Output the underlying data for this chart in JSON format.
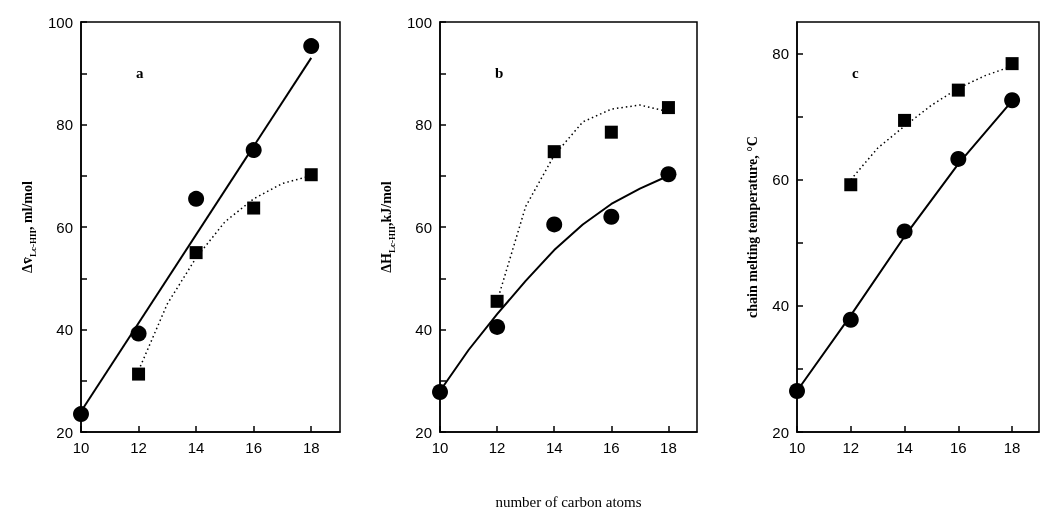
{
  "chart_data": [
    {
      "type": "scatter",
      "ylabel": "Δv̄$_{Lc-HII}$, ml/mol",
      "annotations": [
        "a"
      ],
      "xlim": [
        10,
        19
      ],
      "xticks": [
        10,
        12,
        14,
        16,
        18
      ],
      "ylim": [
        20,
        100
      ],
      "yticks": [
        20,
        {
          "value": 30,
          "label": null
        },
        40,
        {
          "value": 50,
          "label": null
        },
        60,
        {
          "value": 70,
          "label": null
        },
        80,
        {
          "value": 90,
          "label": null
        },
        100
      ],
      "grid": false,
      "series": [
        {
          "marker": "circle",
          "color": "#000000",
          "x": [
            10,
            12,
            14,
            16,
            18
          ],
          "values": [
            23.5,
            39.2,
            65.5,
            75,
            95.3
          ]
        },
        {
          "marker": "square",
          "color": "#000000",
          "x": [
            12,
            14,
            16,
            18
          ],
          "values": [
            31.3,
            55,
            63.7,
            70.2
          ]
        },
        {
          "type": "line",
          "marker": "none",
          "line_style": "solid",
          "color": "#000000",
          "x": [
            10,
            18
          ],
          "values": [
            24,
            93
          ]
        },
        {
          "type": "line",
          "marker": "none",
          "line_style": "dotted",
          "color": "#000000",
          "x": [
            12,
            13,
            14,
            15,
            16,
            17,
            18
          ],
          "values": [
            32,
            45,
            54,
            61,
            65.5,
            68.5,
            70
          ]
        }
      ]
    },
    {
      "type": "scatter",
      "ylabel": "ΔH$_{Lc-HII}$,kJ/mol",
      "xlabel": "number of carbon atoms",
      "annotations": [
        "b"
      ],
      "xlim": [
        10,
        19
      ],
      "xticks": [
        10,
        12,
        14,
        16,
        18
      ],
      "ylim": [
        20,
        100
      ],
      "yticks": [
        20,
        {
          "value": 30,
          "label": null
        },
        40,
        {
          "value": 50,
          "label": null
        },
        60,
        {
          "value": 70,
          "label": null
        },
        80,
        {
          "value": 90,
          "label": null
        },
        100
      ],
      "grid": false,
      "series": [
        {
          "marker": "circle",
          "color": "#000000",
          "x": [
            10,
            12,
            14,
            16,
            18
          ],
          "values": [
            27.8,
            40.5,
            60.5,
            62,
            70.3
          ]
        },
        {
          "marker": "square",
          "color": "#000000",
          "x": [
            12,
            14,
            16,
            18
          ],
          "values": [
            45.5,
            74.7,
            78.5,
            83.3
          ]
        },
        {
          "type": "line",
          "marker": "none",
          "line_style": "solid",
          "color": "#000000",
          "x": [
            10,
            11,
            12,
            13,
            14,
            15,
            16,
            17,
            18
          ],
          "values": [
            28,
            36,
            43,
            49.5,
            55.5,
            60.5,
            64.5,
            67.5,
            70
          ]
        },
        {
          "type": "line",
          "marker": "none",
          "line_style": "dotted",
          "color": "#000000",
          "x": [
            12,
            13,
            14,
            15,
            16,
            17,
            18
          ],
          "values": [
            45.5,
            64,
            74,
            80.5,
            83,
            83.8,
            82.5
          ]
        }
      ]
    },
    {
      "type": "scatter",
      "ylabel": "chain melting temperature, °C",
      "annotations": [
        "c"
      ],
      "xlim": [
        10,
        19
      ],
      "xticks": [
        10,
        12,
        14,
        16,
        18
      ],
      "ylim": [
        20,
        85
      ],
      "yticks": [
        20,
        {
          "value": 30,
          "label": null
        },
        40,
        {
          "value": 50,
          "label": null
        },
        60,
        {
          "value": 70,
          "label": null
        },
        80
      ],
      "grid": false,
      "series": [
        {
          "marker": "circle",
          "color": "#000000",
          "x": [
            10,
            12,
            14,
            16,
            18
          ],
          "values": [
            26.5,
            37.8,
            51.8,
            63.3,
            72.6
          ]
        },
        {
          "marker": "square",
          "color": "#000000",
          "x": [
            12,
            14,
            16,
            18
          ],
          "values": [
            59.2,
            69.4,
            74.2,
            78.4
          ]
        },
        {
          "type": "line",
          "marker": "none",
          "line_style": "solid",
          "color": "#000000",
          "x": [
            10,
            12,
            14,
            16,
            18
          ],
          "values": [
            26.5,
            38.5,
            51,
            62.5,
            72.5
          ]
        },
        {
          "type": "line",
          "marker": "none",
          "line_style": "dotted",
          "color": "#000000",
          "x": [
            12,
            13,
            14,
            15,
            16,
            17,
            18
          ],
          "values": [
            60,
            65,
            68.5,
            71.8,
            74.5,
            76.5,
            78
          ]
        }
      ]
    }
  ]
}
